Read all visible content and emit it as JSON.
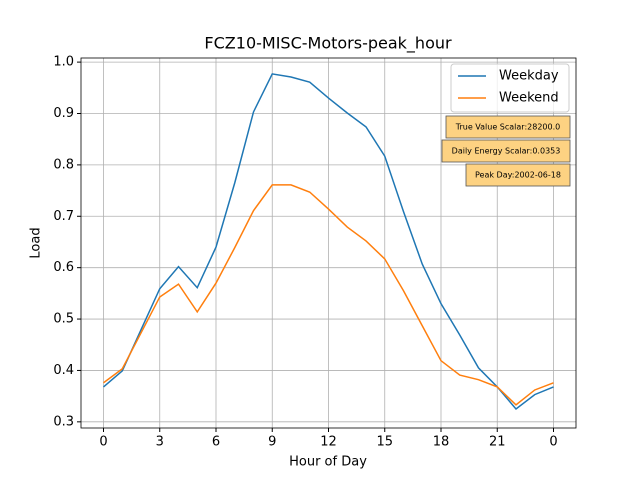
{
  "chart_data": {
    "type": "line",
    "title": "FCZ10-MISC-Motors-peak_hour",
    "x_label": "Hour of Day",
    "y_label": "Load",
    "x": [
      0,
      1,
      2,
      3,
      4,
      5,
      6,
      7,
      8,
      9,
      10,
      11,
      12,
      13,
      14,
      15,
      16,
      17,
      18,
      19,
      20,
      21,
      22,
      23,
      24
    ],
    "series": [
      {
        "name": "Weekday",
        "color": "#1f77b4",
        "values": [
          0.368,
          0.399,
          0.479,
          0.559,
          0.602,
          0.561,
          0.64,
          0.765,
          0.903,
          0.977,
          0.971,
          0.961,
          0.93,
          0.901,
          0.874,
          0.817,
          0.709,
          0.607,
          0.53,
          0.469,
          0.405,
          0.368,
          0.325,
          0.353,
          0.368
        ]
      },
      {
        "name": "Weekend",
        "color": "#ff7f0e",
        "values": [
          0.376,
          0.403,
          0.473,
          0.543,
          0.568,
          0.514,
          0.57,
          0.639,
          0.711,
          0.761,
          0.761,
          0.747,
          0.714,
          0.679,
          0.652,
          0.617,
          0.555,
          0.487,
          0.419,
          0.391,
          0.382,
          0.368,
          0.333,
          0.362,
          0.376
        ]
      }
    ],
    "xlim": [
      -1.2,
      25.2
    ],
    "ylim": [
      0.288,
      1.008
    ],
    "xticks": [
      0,
      3,
      6,
      9,
      12,
      15,
      18,
      21,
      {
        "value": 24,
        "label": "0"
      }
    ],
    "yticks": [
      {
        "value": 0.3,
        "label": "0.3"
      },
      {
        "value": 0.4,
        "label": "0.4"
      },
      {
        "value": 0.5,
        "label": "0.5"
      },
      {
        "value": 0.6,
        "label": "0.6"
      },
      {
        "value": 0.7,
        "label": "0.7"
      },
      {
        "value": 0.8,
        "label": "0.8"
      },
      {
        "value": 0.9,
        "label": "0.9"
      },
      {
        "value": 1.0,
        "label": "1.0"
      }
    ],
    "grid": true,
    "legend": "upper right",
    "annotations": [
      "True Value Scalar:28200.0",
      "Daily Energy Scalar:0.0353",
      "Peak Day:2002-06-18"
    ]
  }
}
